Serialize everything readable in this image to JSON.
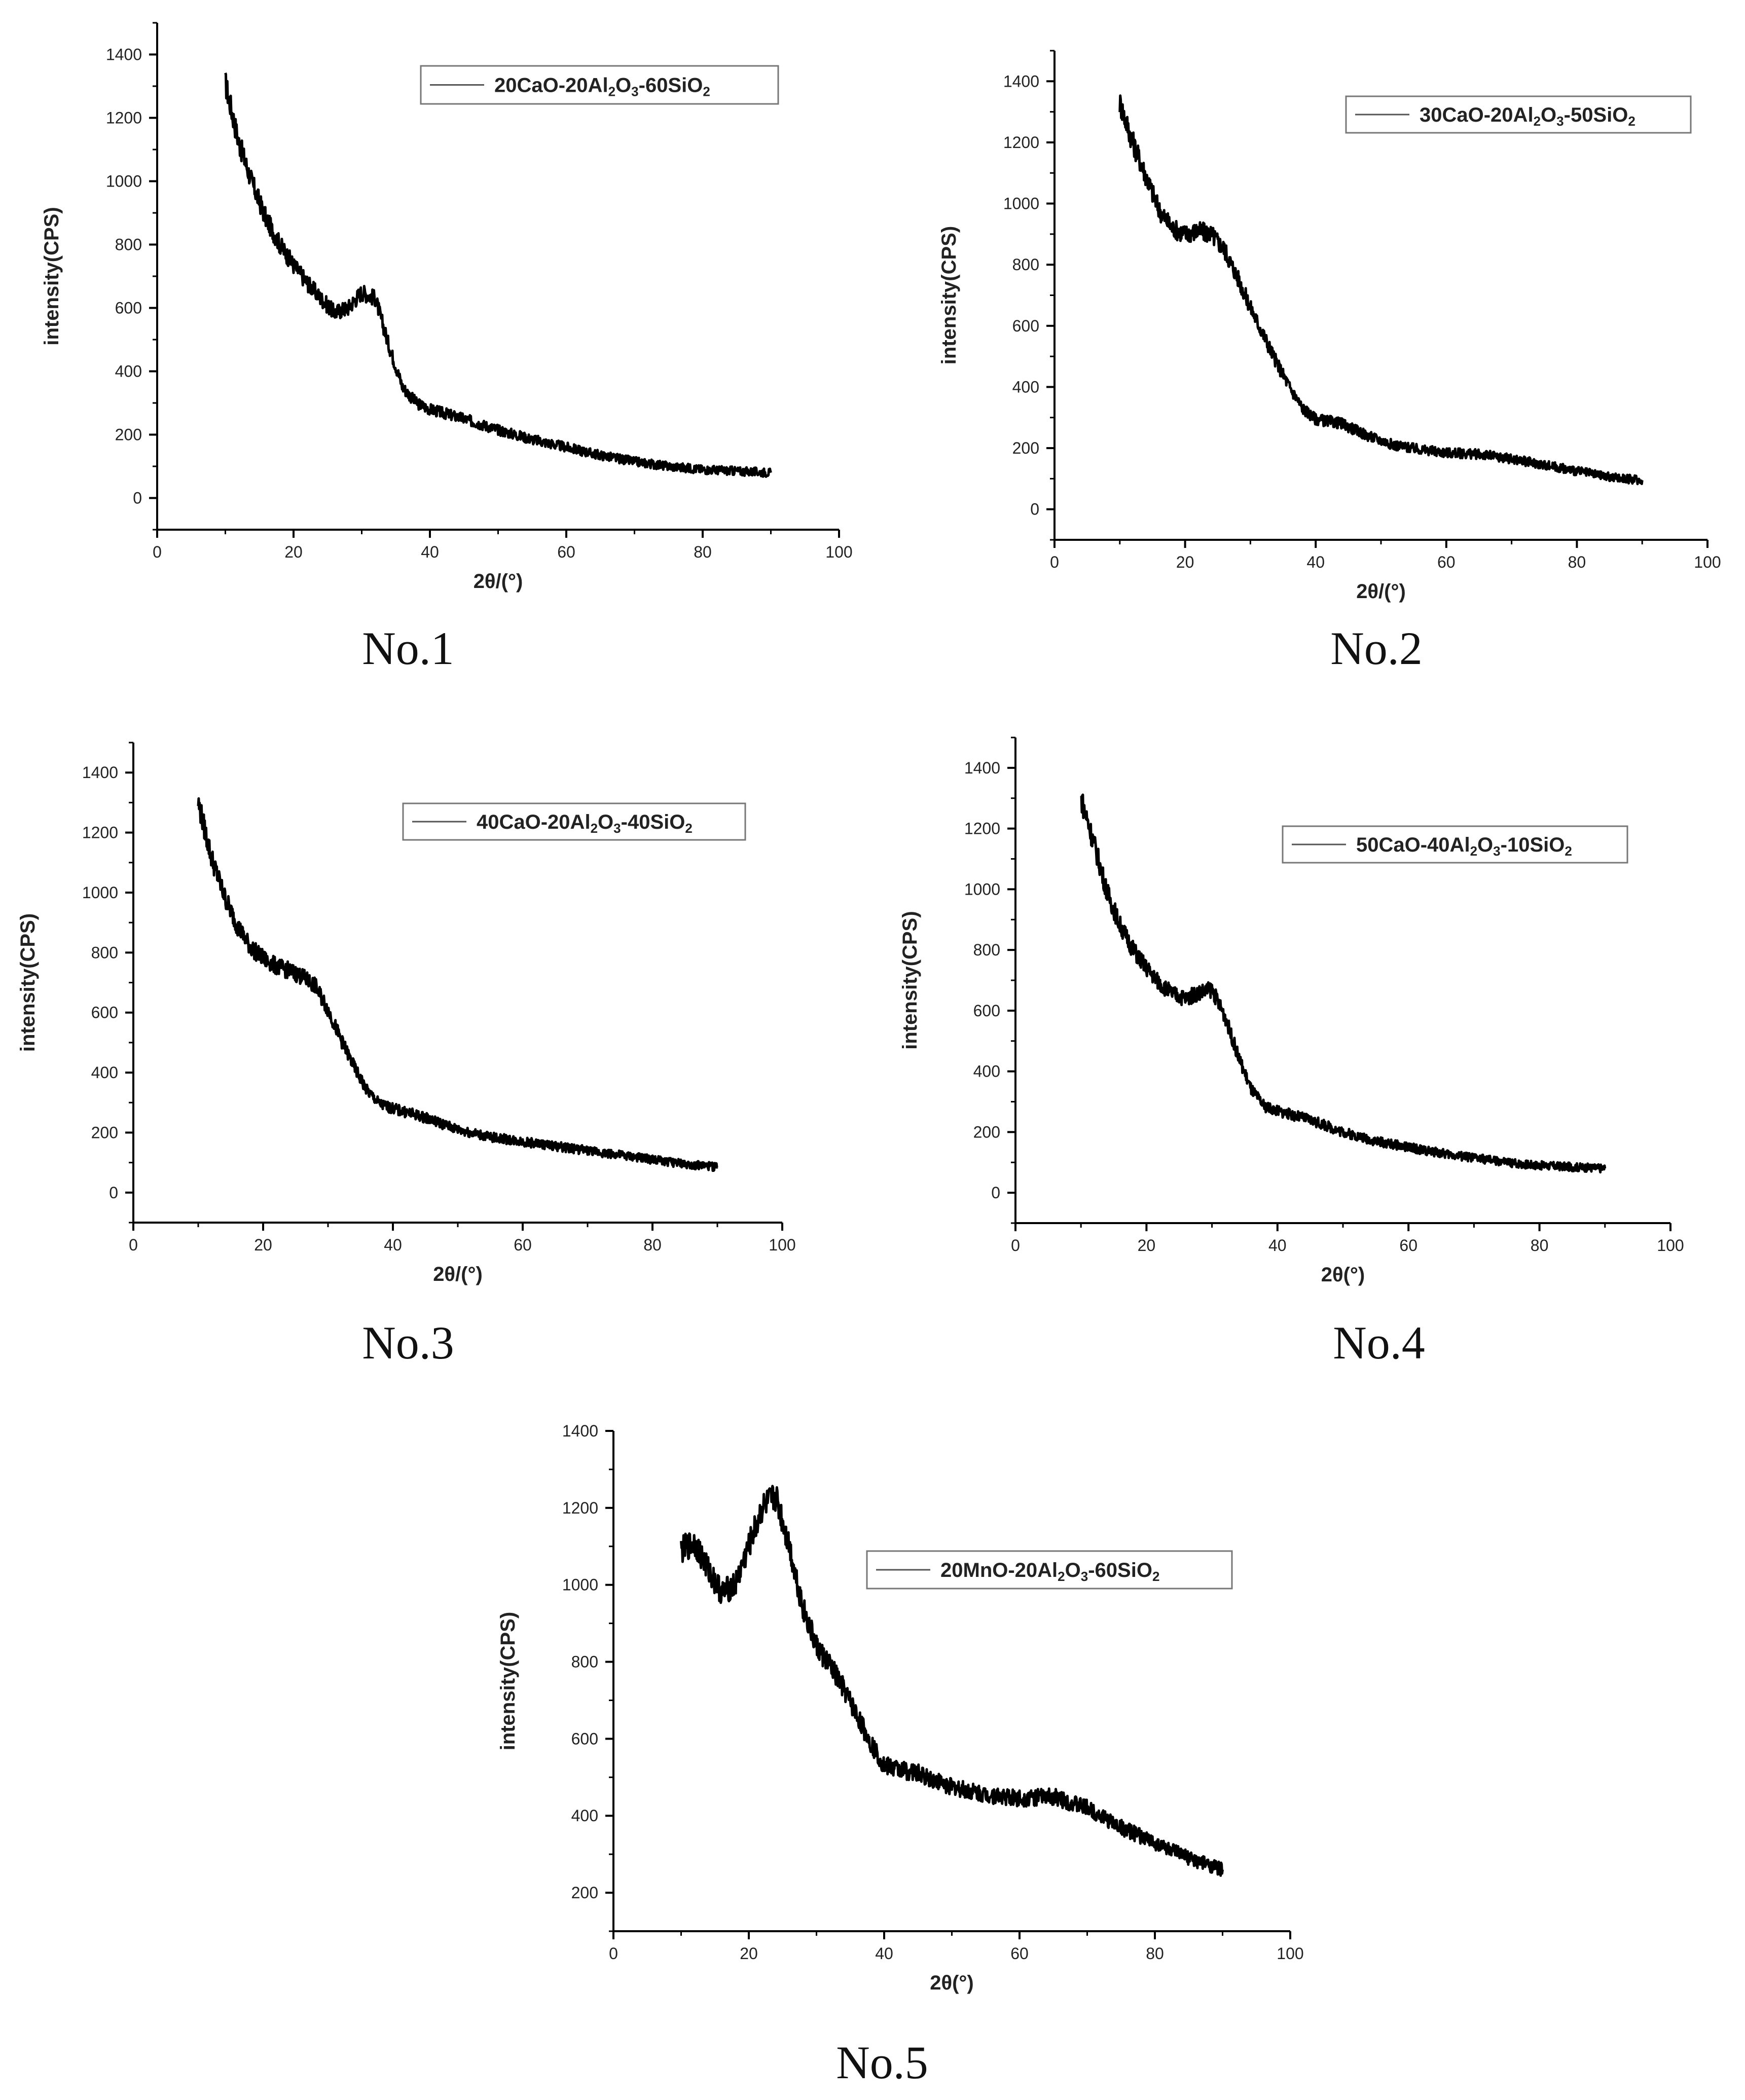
{
  "figure": {
    "panel_count": 5
  },
  "chart_data": [
    {
      "type": "line",
      "caption": "No.1",
      "legend_label": "20CaO-20Al2O3-60SiO2",
      "legend_parts": [
        {
          "t": "20CaO-20Al"
        },
        {
          "t": "2",
          "sub": true
        },
        {
          "t": "O"
        },
        {
          "t": "3",
          "sub": true
        },
        {
          "t": "-60SiO"
        },
        {
          "t": "2",
          "sub": true
        }
      ],
      "xlabel": "2θ/(°)",
      "ylabel": "intensity(CPS)",
      "xlim": [
        0,
        100
      ],
      "ylim": [
        -100,
        1500
      ],
      "xticks": [
        0,
        20,
        40,
        60,
        80,
        100
      ],
      "yticks": [
        0,
        200,
        400,
        600,
        800,
        1000,
        1200,
        1400
      ],
      "series": [
        {
          "name": "20CaO-20Al2O3-60SiO2",
          "x": [
            10,
            12,
            14,
            16,
            18,
            20,
            22,
            24,
            26,
            28,
            30,
            32,
            34,
            36,
            38,
            40,
            45,
            50,
            55,
            60,
            65,
            70,
            75,
            80,
            85,
            90
          ],
          "y": [
            1310,
            1120,
            990,
            880,
            800,
            735,
            680,
            630,
            585,
            600,
            650,
            630,
            480,
            350,
            300,
            280,
            250,
            215,
            185,
            160,
            135,
            115,
            100,
            90,
            85,
            80
          ]
        }
      ]
    },
    {
      "type": "line",
      "caption": "No.2",
      "legend_label": "30CaO-20Al2O3-50SiO2",
      "legend_parts": [
        {
          "t": "30CaO-20Al"
        },
        {
          "t": "2",
          "sub": true
        },
        {
          "t": "O"
        },
        {
          "t": "3",
          "sub": true
        },
        {
          "t": "-50SiO"
        },
        {
          "t": "2",
          "sub": true
        }
      ],
      "xlabel": "2θ/(°)",
      "ylabel": "intensity(CPS)",
      "xlim": [
        0,
        100
      ],
      "ylim": [
        -100,
        1500
      ],
      "xticks": [
        0,
        20,
        40,
        60,
        80,
        100
      ],
      "yticks": [
        0,
        200,
        400,
        600,
        800,
        1000,
        1200,
        1400
      ],
      "series": [
        {
          "name": "30CaO-20Al2O3-50SiO2",
          "x": [
            10,
            12,
            14,
            16,
            18,
            20,
            22,
            24,
            26,
            28,
            30,
            32,
            34,
            36,
            38,
            40,
            44,
            48,
            52,
            56,
            60,
            65,
            70,
            75,
            80,
            85,
            90
          ],
          "y": [
            1330,
            1200,
            1090,
            980,
            920,
            900,
            910,
            900,
            850,
            760,
            660,
            570,
            480,
            400,
            330,
            295,
            280,
            240,
            210,
            195,
            185,
            180,
            165,
            145,
            125,
            105,
            95
          ]
        }
      ]
    },
    {
      "type": "line",
      "caption": "No.3",
      "legend_label": "40CaO-20Al2O3-40SiO2",
      "legend_parts": [
        {
          "t": "40CaO-20Al"
        },
        {
          "t": "2",
          "sub": true
        },
        {
          "t": "O"
        },
        {
          "t": "3",
          "sub": true
        },
        {
          "t": "-40SiO"
        },
        {
          "t": "2",
          "sub": true
        }
      ],
      "xlabel": "2θ/(°)",
      "ylabel": "intensity(CPS)",
      "xlim": [
        0,
        100
      ],
      "ylim": [
        -100,
        1500
      ],
      "xticks": [
        0,
        20,
        40,
        60,
        80,
        100
      ],
      "yticks": [
        0,
        200,
        400,
        600,
        800,
        1000,
        1200,
        1400
      ],
      "series": [
        {
          "name": "40CaO-20Al2O3-40SiO2",
          "x": [
            10,
            12,
            14,
            16,
            18,
            20,
            22,
            24,
            26,
            28,
            30,
            32,
            34,
            36,
            38,
            40,
            45,
            50,
            55,
            60,
            65,
            70,
            75,
            80,
            85,
            90
          ],
          "y": [
            1300,
            1120,
            990,
            890,
            820,
            780,
            755,
            740,
            720,
            690,
            610,
            510,
            420,
            340,
            295,
            280,
            250,
            210,
            185,
            170,
            155,
            140,
            125,
            110,
            95,
            85
          ]
        }
      ]
    },
    {
      "type": "line",
      "caption": "No.4",
      "legend_label": "50CaO-40Al2O3-10SiO2",
      "legend_parts": [
        {
          "t": "50CaO-40Al"
        },
        {
          "t": "2",
          "sub": true
        },
        {
          "t": "O"
        },
        {
          "t": "3",
          "sub": true
        },
        {
          "t": "-10SiO"
        },
        {
          "t": "2",
          "sub": true
        }
      ],
      "xlabel": "2θ(°)",
      "ylabel": "intensity(CPS)",
      "xlim": [
        0,
        100
      ],
      "ylim": [
        -100,
        1500
      ],
      "xticks": [
        0,
        20,
        40,
        60,
        80,
        100
      ],
      "yticks": [
        0,
        200,
        400,
        600,
        800,
        1000,
        1200,
        1400
      ],
      "series": [
        {
          "name": "50CaO-40Al2O3-10SiO2",
          "x": [
            10,
            12,
            14,
            16,
            18,
            20,
            22,
            24,
            26,
            28,
            30,
            32,
            34,
            36,
            38,
            40,
            45,
            50,
            55,
            60,
            65,
            70,
            75,
            80,
            85,
            90
          ],
          "y": [
            1300,
            1150,
            990,
            880,
            800,
            740,
            690,
            655,
            640,
            660,
            670,
            580,
            450,
            340,
            285,
            270,
            240,
            200,
            170,
            150,
            130,
            115,
            100,
            90,
            85,
            80
          ]
        }
      ]
    },
    {
      "type": "line",
      "caption": "No.5",
      "legend_label": "20MnO-20Al2O3-60SiO2",
      "legend_parts": [
        {
          "t": "20MnO-20Al"
        },
        {
          "t": "2",
          "sub": true
        },
        {
          "t": "O"
        },
        {
          "t": "3",
          "sub": true
        },
        {
          "t": "-60SiO"
        },
        {
          "t": "2",
          "sub": true
        }
      ],
      "xlabel": "2θ(°)",
      "ylabel": "intensity(CPS)",
      "xlim": [
        0,
        100
      ],
      "ylim": [
        100,
        1400
      ],
      "xticks": [
        0,
        20,
        40,
        60,
        80,
        100
      ],
      "yticks": [
        200,
        400,
        600,
        800,
        1000,
        1200,
        1400
      ],
      "series": [
        {
          "name": "20MnO-20Al2O3-60SiO2",
          "x": [
            10,
            12,
            14,
            16,
            18,
            20,
            22,
            24,
            26,
            28,
            30,
            32,
            34,
            36,
            38,
            40,
            45,
            50,
            55,
            60,
            65,
            70,
            75,
            80,
            85,
            90
          ],
          "y": [
            1090,
            1110,
            1040,
            980,
            1000,
            1100,
            1200,
            1230,
            1100,
            940,
            840,
            790,
            730,
            660,
            590,
            530,
            510,
            475,
            455,
            445,
            450,
            420,
            370,
            330,
            290,
            260
          ]
        }
      ]
    }
  ]
}
